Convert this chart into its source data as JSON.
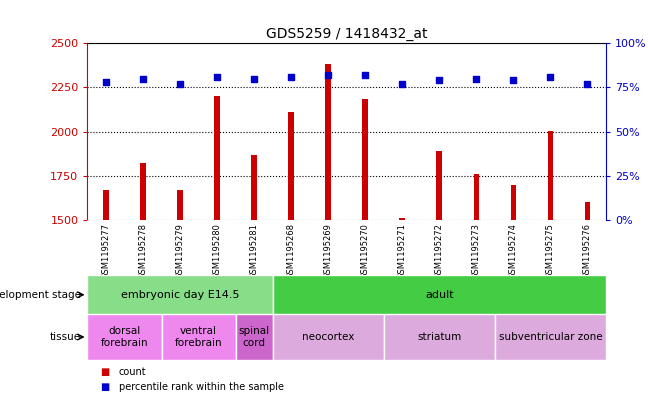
{
  "title": "GDS5259 / 1418432_at",
  "samples": [
    "GSM1195277",
    "GSM1195278",
    "GSM1195279",
    "GSM1195280",
    "GSM1195281",
    "GSM1195268",
    "GSM1195269",
    "GSM1195270",
    "GSM1195271",
    "GSM1195272",
    "GSM1195273",
    "GSM1195274",
    "GSM1195275",
    "GSM1195276"
  ],
  "counts": [
    1670,
    1820,
    1670,
    2200,
    1870,
    2110,
    2380,
    2185,
    1510,
    1890,
    1760,
    1700,
    2005,
    1600
  ],
  "percentiles": [
    78,
    80,
    77,
    81,
    80,
    81,
    82,
    82,
    77,
    79,
    80,
    79,
    81,
    77
  ],
  "ylim_left": [
    1500,
    2500
  ],
  "ylim_right": [
    0,
    100
  ],
  "yticks_left": [
    1500,
    1750,
    2000,
    2250,
    2500
  ],
  "yticks_right": [
    0,
    25,
    50,
    75,
    100
  ],
  "bar_color": "#cc0000",
  "dot_color": "#0000cc",
  "dev_stage_groups": [
    {
      "label": "embryonic day E14.5",
      "start": 0,
      "end": 4,
      "color": "#88dd88"
    },
    {
      "label": "adult",
      "start": 5,
      "end": 13,
      "color": "#44cc44"
    }
  ],
  "tissue_groups": [
    {
      "label": "dorsal\nforebrain",
      "start": 0,
      "end": 1,
      "color": "#ee88ee"
    },
    {
      "label": "ventral\nforebrain",
      "start": 2,
      "end": 3,
      "color": "#ee88ee"
    },
    {
      "label": "spinal\ncord",
      "start": 4,
      "end": 4,
      "color": "#cc66cc"
    },
    {
      "label": "neocortex",
      "start": 5,
      "end": 7,
      "color": "#ddaadd"
    },
    {
      "label": "striatum",
      "start": 8,
      "end": 10,
      "color": "#ddaadd"
    },
    {
      "label": "subventricular zone",
      "start": 11,
      "end": 13,
      "color": "#ddaadd"
    }
  ],
  "left_axis_color": "#cc0000",
  "right_axis_color": "#0000cc",
  "plot_bg": "#ffffff",
  "tick_area_bg": "#cccccc",
  "bar_width": 0.15,
  "label_fontsize": 7,
  "dev_fontsize": 8,
  "tissue_fontsize": 7.5
}
